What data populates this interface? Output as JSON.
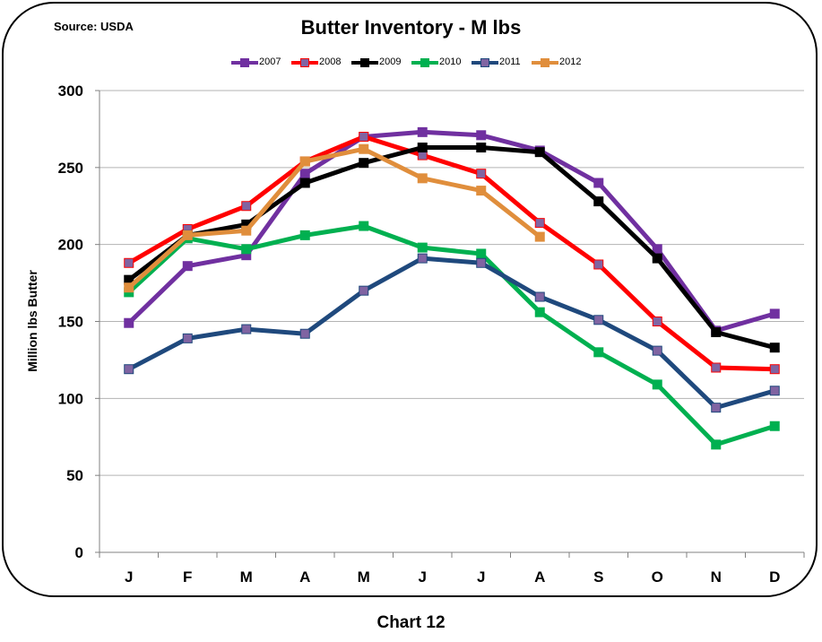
{
  "source_note": "Source: USDA",
  "caption": "Chart  12",
  "chart_data": {
    "type": "line",
    "title": "Butter Inventory  - M lbs",
    "xlabel": "",
    "ylabel": "Million lbs Butter",
    "categories": [
      "J",
      "F",
      "M",
      "A",
      "M",
      "J",
      "J",
      "A",
      "S",
      "O",
      "N",
      "D"
    ],
    "ylim": [
      0,
      300
    ],
    "yticks": [
      0,
      50,
      100,
      150,
      200,
      250,
      300
    ],
    "grid": true,
    "legend_position": "top",
    "series": [
      {
        "name": "2007",
        "color": "#7030A0",
        "marker_color": "#7030A0",
        "values": [
          149,
          186,
          193,
          246,
          270,
          273,
          271,
          261,
          240,
          197,
          144,
          155
        ]
      },
      {
        "name": "2008",
        "color": "#FF0000",
        "marker_color": "#8064A2",
        "values": [
          188,
          210,
          225,
          254,
          270,
          258,
          246,
          214,
          187,
          150,
          120,
          119
        ]
      },
      {
        "name": "2009",
        "color": "#000000",
        "marker_color": "#000000",
        "values": [
          177,
          206,
          213,
          240,
          253,
          263,
          263,
          260,
          228,
          191,
          143,
          133
        ]
      },
      {
        "name": "2010",
        "color": "#00B050",
        "marker_color": "#00B050",
        "values": [
          169,
          204,
          197,
          206,
          212,
          198,
          194,
          156,
          130,
          109,
          70,
          82
        ]
      },
      {
        "name": "2011",
        "color": "#1F497D",
        "marker_color": "#8064A2",
        "values": [
          119,
          139,
          145,
          142,
          170,
          191,
          188,
          166,
          151,
          131,
          94,
          105
        ]
      },
      {
        "name": "2012",
        "color": "#E08E3C",
        "marker_color": "#E08E3C",
        "values": [
          172,
          206,
          209,
          254,
          262,
          243,
          235,
          205,
          null,
          null,
          null,
          null
        ]
      }
    ]
  }
}
